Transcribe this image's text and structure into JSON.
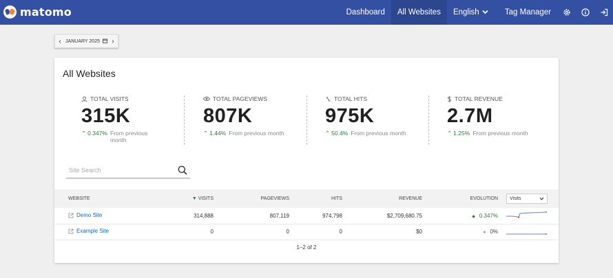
{
  "app": {
    "name": "matomo"
  },
  "nav": {
    "items": [
      {
        "label": "Dashboard"
      },
      {
        "label": "All Websites"
      },
      {
        "label": "English"
      },
      {
        "label": "Tag Manager"
      }
    ]
  },
  "period": {
    "label": "JANUARY 2025"
  },
  "card": {
    "title": "All Websites"
  },
  "kpis": [
    {
      "label": "TOTAL VISITS",
      "icon": "user-icon",
      "value": "315K",
      "pct": "0.347%",
      "from": "From previous month"
    },
    {
      "label": "TOTAL PAGEVIEWS",
      "icon": "eye-icon",
      "value": "807K",
      "pct": "1.44%",
      "from": "From previous month"
    },
    {
      "label": "TOTAL HITS",
      "icon": "hits-icon",
      "value": "975K",
      "pct": "50.4%",
      "from": "From previous month"
    },
    {
      "label": "TOTAL REVENUE",
      "icon": "dollar-icon",
      "value": "2.7M",
      "pct": "1.25%",
      "from": "From previous month"
    }
  ],
  "search": {
    "placeholder": "Site Search",
    "value": ""
  },
  "table": {
    "headers": {
      "website": "WEBSITE",
      "visits": "VISITS",
      "pageviews": "PAGEVIEWS",
      "hits": "HITS",
      "revenue": "REVENUE",
      "evolution": "EVOLUTION",
      "metric": "Visits"
    },
    "rows": [
      {
        "site": "Demo Site",
        "visits": "314,888",
        "pageviews": "807,119",
        "hits": "974,798",
        "revenue": "$2,709,680.75",
        "evolution": "0.347%"
      },
      {
        "site": "Example Site",
        "visits": "0",
        "pageviews": "0",
        "hits": "0",
        "revenue": "$0",
        "evolution": "0%"
      }
    ]
  },
  "pager": {
    "label": "1–2 of 2"
  },
  "colors": {
    "header": "#3450a3",
    "positive": "#2e7d32",
    "link": "#1565c0"
  }
}
